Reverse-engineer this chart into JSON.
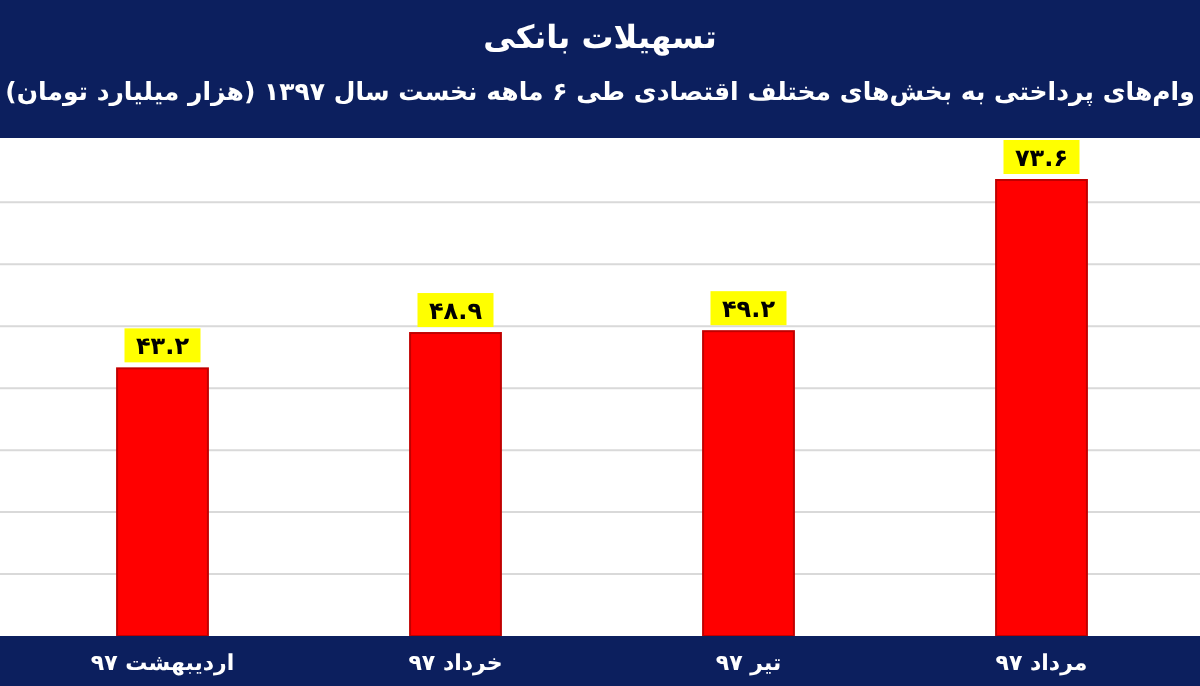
{
  "chart_data": {
    "type": "bar",
    "title": "تسهیلات بانکی",
    "subtitle": "وام‌های پرداختی به بخش‌های مختلف اقتصادی طی ۶ ماهه نخست سال ۱۳۹۷ (هزار میلیارد تومان)",
    "categories": [
      "اردیبهشت ۹۷",
      "خرداد ۹۷",
      "تیر ۹۷",
      "مرداد ۹۷"
    ],
    "values": [
      43.2,
      48.9,
      49.2,
      73.6
    ],
    "value_labels": [
      "۴۳.۲",
      "۴۸.۹",
      "۴۹.۲",
      "۷۳.۶"
    ],
    "color": "#ff0000",
    "yticks": [
      {
        "value": 10,
        "label": null
      },
      {
        "value": 20,
        "label": null
      },
      {
        "value": 30,
        "label": null
      },
      {
        "value": 40,
        "label": null
      },
      {
        "value": 50,
        "label": null
      },
      {
        "value": 60,
        "label": null
      },
      {
        "value": 70,
        "label": null
      }
    ],
    "tick_labels": "x",
    "grid": "y"
  }
}
